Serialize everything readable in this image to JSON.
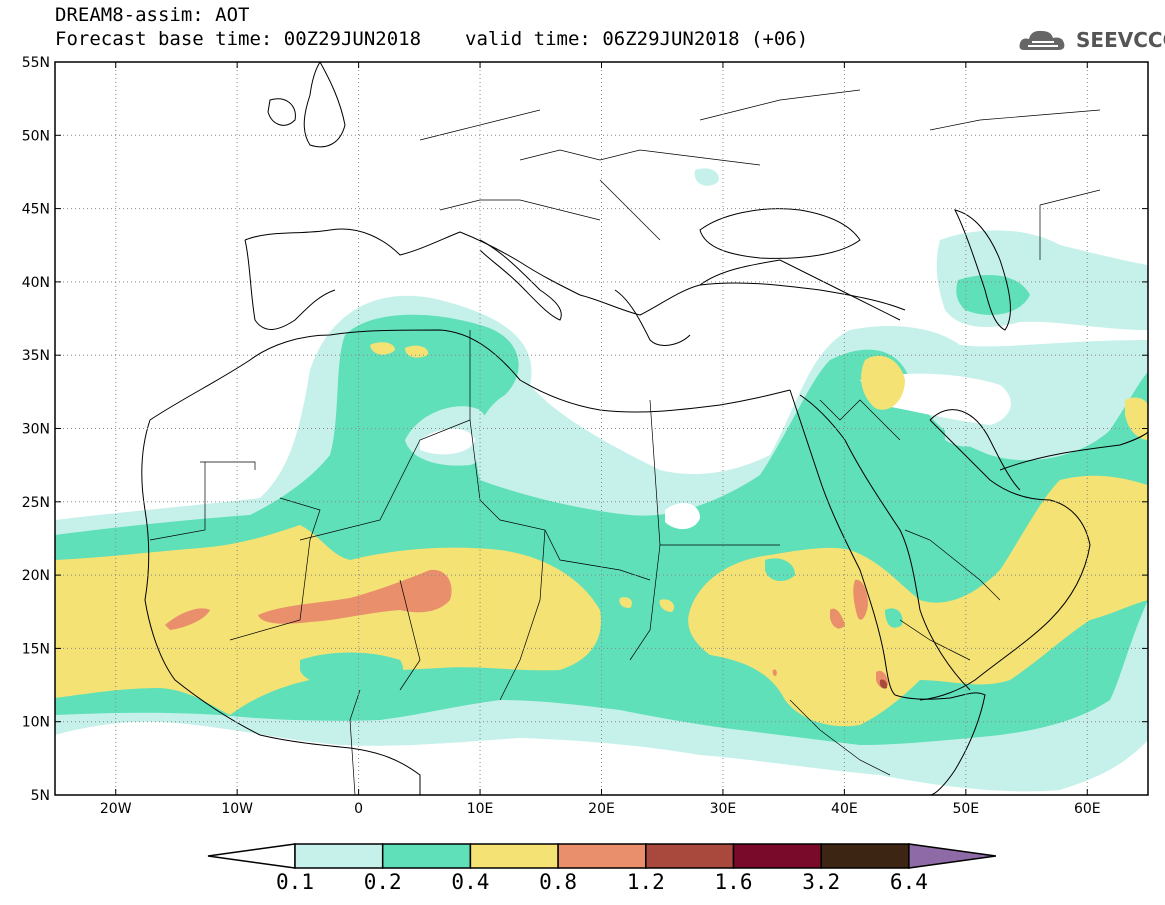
{
  "header": {
    "line1": "DREAM8-assim: AOT",
    "base_time": "Forecast base time: 00Z29JUN2018",
    "valid_time": "valid time: 06Z29JUN2018 (+06)"
  },
  "logo": {
    "text": "SEEVCCC",
    "icon": "cloud-logo-icon"
  },
  "map": {
    "lat_labels": [
      "55N",
      "50N",
      "45N",
      "40N",
      "35N",
      "30N",
      "25N",
      "20N",
      "15N",
      "10N",
      "5N"
    ],
    "lon_labels": [
      "20W",
      "10W",
      "0",
      "10E",
      "20E",
      "30E",
      "40E",
      "50E",
      "60E"
    ],
    "grid": "dotted"
  },
  "colorbar": {
    "labels": [
      "0.1",
      "0.2",
      "0.4",
      "0.8",
      "1.2",
      "1.6",
      "3.2",
      "6.4"
    ],
    "colors": [
      "#ffffff",
      "#c6f1ea",
      "#5fe0b9",
      "#f4e274",
      "#e98f6b",
      "#a9493d",
      "#7a0a2a",
      "#3d2513",
      "#8e6aa7"
    ]
  },
  "legend_colors": {
    "lt01": "#ffffff",
    "c01_02": "#c6f1ea",
    "c02_04": "#5fe0b9",
    "c04_08": "#f4e274",
    "c08_12": "#e98f6b",
    "c12_16": "#a9493d"
  }
}
